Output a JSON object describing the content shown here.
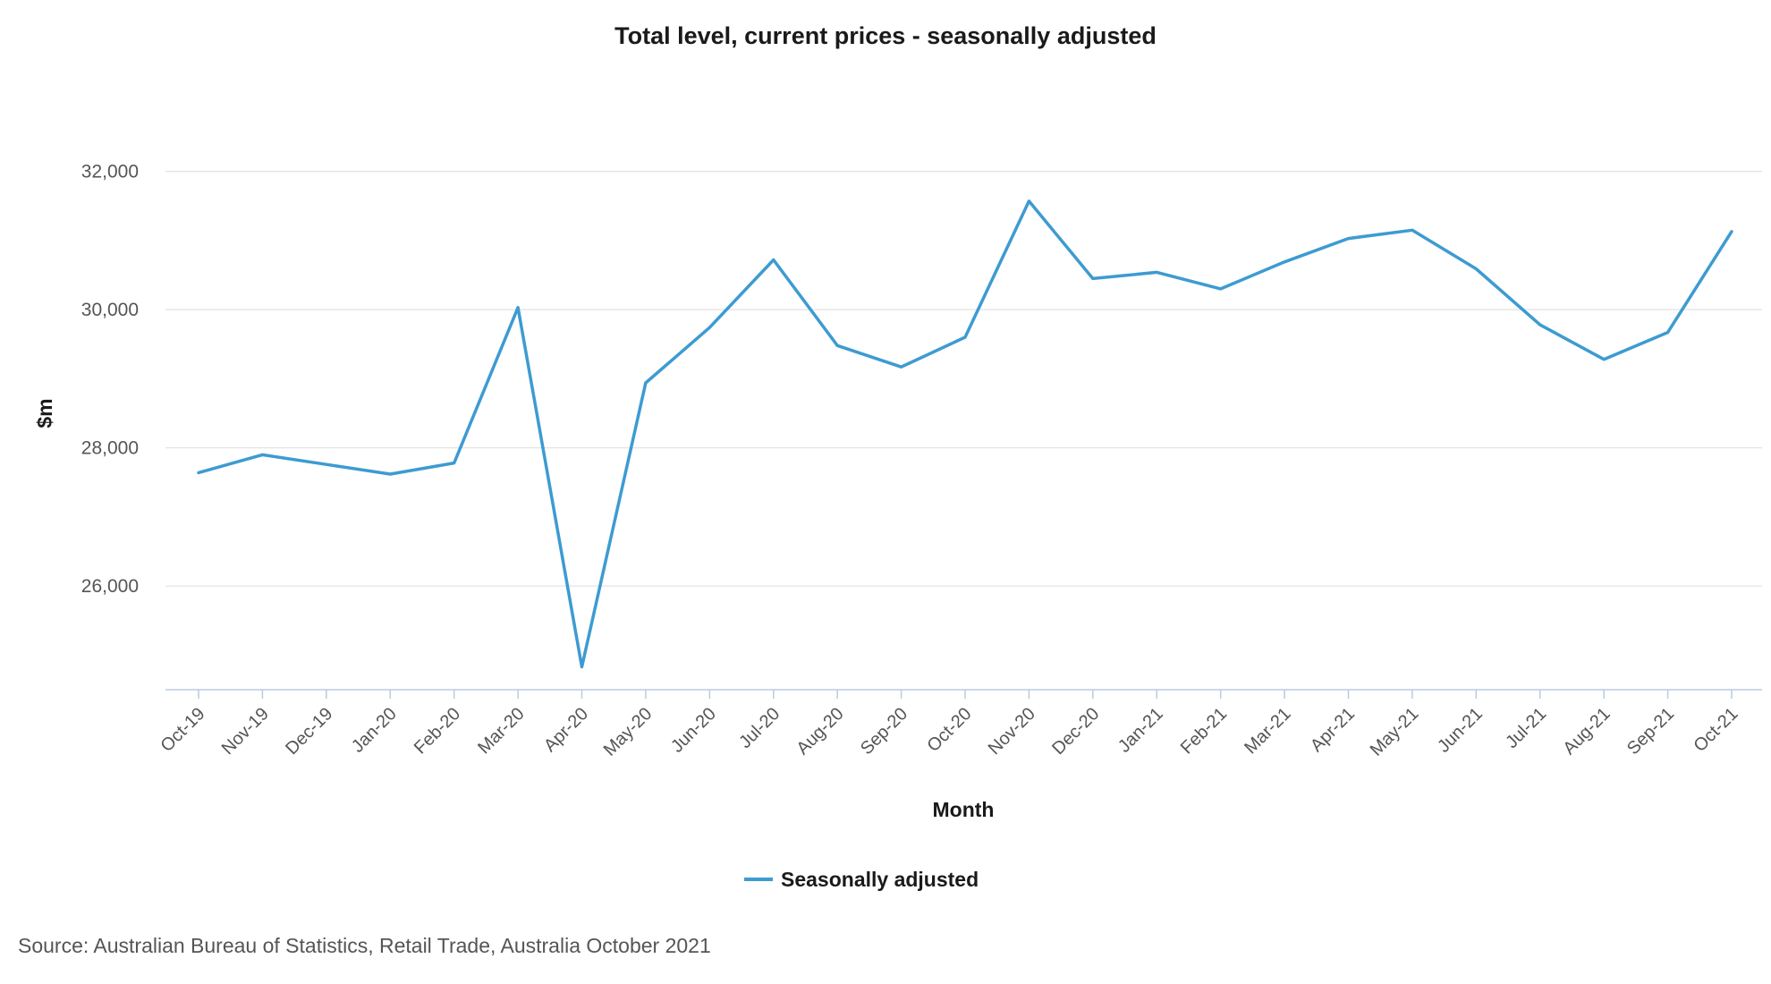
{
  "chart_data": {
    "type": "line",
    "title": "Total level, current prices - seasonally adjusted",
    "xlabel": "Month",
    "ylabel": "$m",
    "categories": [
      "Oct-19",
      "Nov-19",
      "Dec-19",
      "Jan-20",
      "Feb-20",
      "Mar-20",
      "Apr-20",
      "May-20",
      "Jun-20",
      "Jul-20",
      "Aug-20",
      "Sep-20",
      "Oct-20",
      "Nov-20",
      "Dec-20",
      "Jan-21",
      "Feb-21",
      "Mar-21",
      "Apr-21",
      "May-21",
      "Jun-21",
      "Jul-21",
      "Aug-21",
      "Sep-21",
      "Oct-21"
    ],
    "series": [
      {
        "name": "Seasonally adjusted",
        "color": "#3d9bd1",
        "values": [
          27640,
          27900,
          27760,
          27620,
          27780,
          30030,
          24830,
          28940,
          29740,
          30720,
          29480,
          29170,
          29600,
          31570,
          30450,
          30540,
          30300,
          30690,
          31030,
          31150,
          30590,
          29780,
          29280,
          29670,
          31130
        ]
      }
    ],
    "ylim": [
      24500,
      32500
    ],
    "yticks": [
      26000,
      28000,
      30000,
      32000
    ],
    "ytick_labels": [
      "26,000",
      "28,000",
      "30,000",
      "32,000"
    ],
    "grid": true,
    "legend": "bottom-center"
  },
  "source": "Source: Australian Bureau of Statistics, Retail Trade, Australia October 2021"
}
